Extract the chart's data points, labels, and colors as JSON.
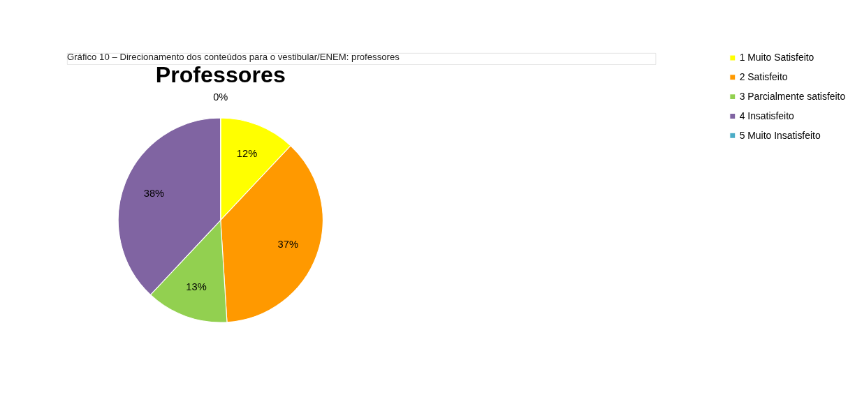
{
  "chart_data": {
    "type": "pie",
    "title": "Professores",
    "annotations": [
      "Gráfico 10 – Direcionamento dos conteúdos para o vestibular/ENEM: professores"
    ],
    "categories": [
      "1 Muito Satisfeito",
      "2 Satisfeito",
      "3 Parcialmente satisfeito",
      "4 Insatisfeito",
      "5 Muito Insatisfeito"
    ],
    "values": [
      12,
      37,
      13,
      38,
      0
    ],
    "value_labels": [
      "12%",
      "37%",
      "13%",
      "38%",
      "0%"
    ],
    "colors": [
      "#ffff00",
      "#ff9900",
      "#92d050",
      "#8064a2",
      "#4bacc6"
    ],
    "legend": "right"
  }
}
